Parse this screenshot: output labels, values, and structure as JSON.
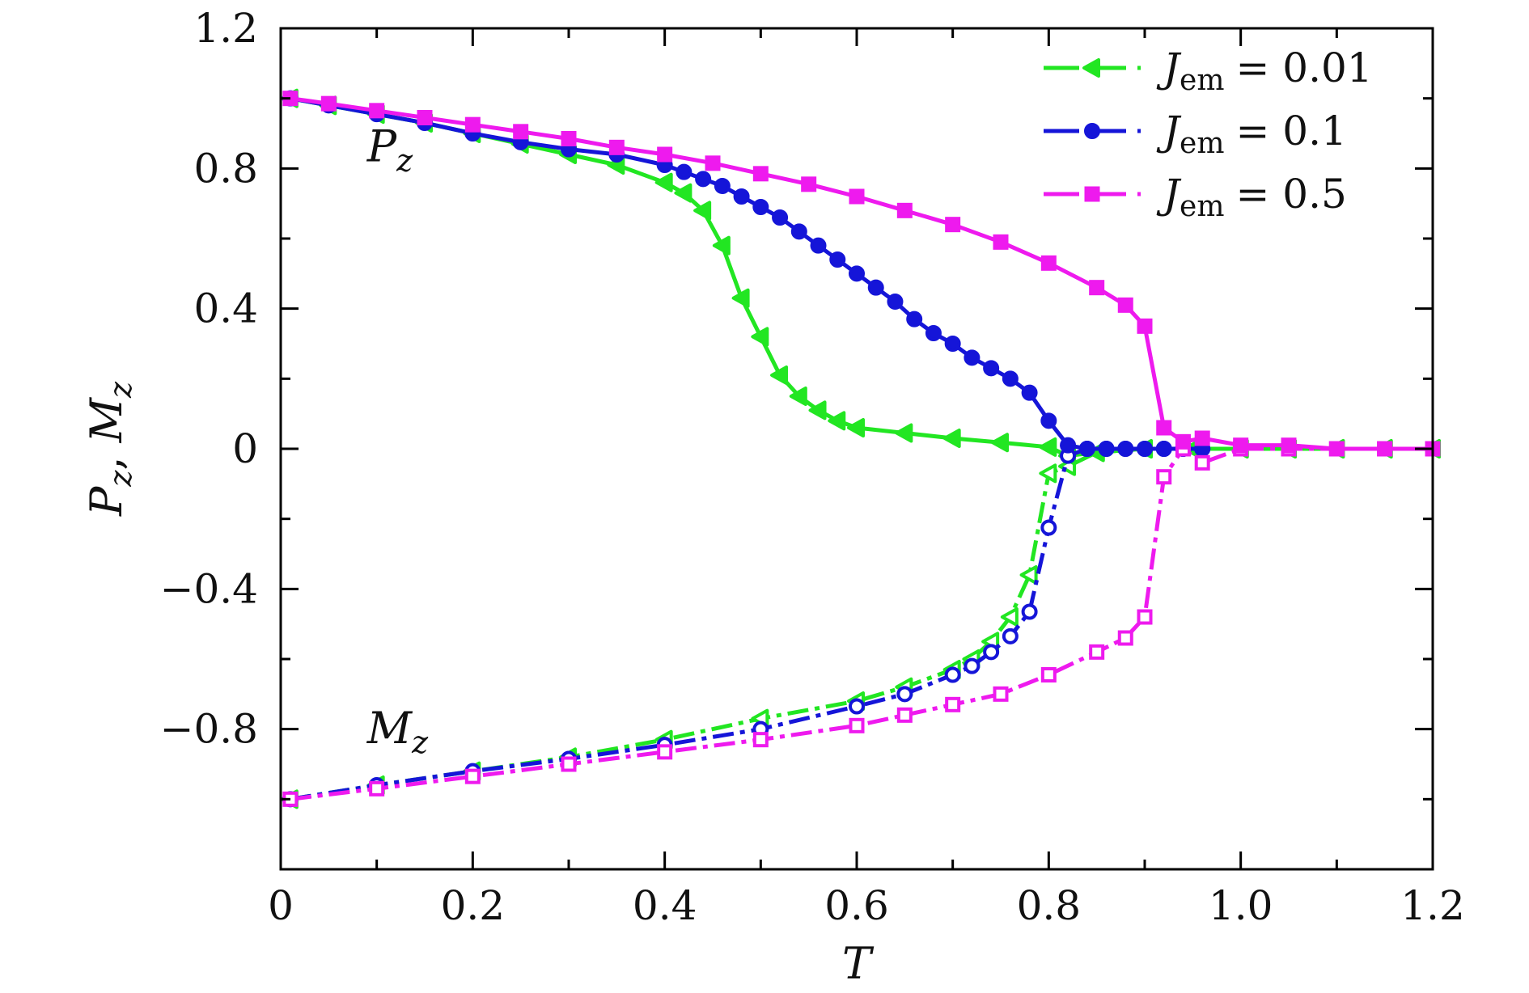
{
  "chart_data": {
    "type": "line",
    "title": "",
    "xlabel": "T",
    "ylabel": "P_z, M_z",
    "xlim": [
      0,
      1.2
    ],
    "ylim": [
      -1.2,
      1.2
    ],
    "grid": false,
    "legend_position": "top-right",
    "x_ticks": [
      "0",
      "0.2",
      "0.4",
      "0.6",
      "0.8",
      "1.0",
      "1.2"
    ],
    "y_ticks": [
      "−0.8",
      "−0.4",
      "0",
      "0.4",
      "0.8",
      "1.2"
    ],
    "annotations": [
      {
        "text": "P",
        "sub": "z",
        "x": 0.09,
        "y": 0.82
      },
      {
        "text": "M",
        "sub": "z",
        "x": 0.09,
        "y": -0.84
      }
    ],
    "legend_symbol": "J",
    "legend_subscript": "em",
    "series": [
      {
        "name": "J_em = 0.01",
        "legend_value": "= 0.01",
        "color": "#22e622",
        "marker": "triangle-left",
        "P_z": {
          "x": [
            0.01,
            0.05,
            0.1,
            0.15,
            0.2,
            0.25,
            0.3,
            0.35,
            0.4,
            0.42,
            0.44,
            0.46,
            0.48,
            0.5,
            0.52,
            0.54,
            0.56,
            0.58,
            0.6,
            0.65,
            0.7,
            0.75,
            0.8,
            0.82,
            0.85,
            0.9,
            0.95,
            1.0,
            1.05,
            1.1,
            1.15,
            1.2
          ],
          "y": [
            1.0,
            0.98,
            0.955,
            0.93,
            0.9,
            0.87,
            0.84,
            0.81,
            0.76,
            0.73,
            0.68,
            0.58,
            0.43,
            0.32,
            0.21,
            0.15,
            0.11,
            0.08,
            0.06,
            0.045,
            0.03,
            0.018,
            0.005,
            -0.02,
            -0.01,
            0.0,
            0.0,
            0.0,
            0.0,
            0.0,
            0.0,
            0.0
          ]
        },
        "M_z": {
          "x": [
            0.01,
            0.1,
            0.2,
            0.3,
            0.4,
            0.5,
            0.6,
            0.65,
            0.7,
            0.72,
            0.74,
            0.76,
            0.78,
            0.8,
            0.82,
            0.85,
            0.9,
            0.95,
            1.0,
            1.05,
            1.1,
            1.15,
            1.2
          ],
          "y": [
            -1.0,
            -0.96,
            -0.92,
            -0.88,
            -0.83,
            -0.77,
            -0.72,
            -0.68,
            -0.63,
            -0.6,
            -0.55,
            -0.48,
            -0.36,
            -0.07,
            -0.05,
            -0.01,
            0.0,
            0.0,
            0.0,
            0.0,
            0.0,
            0.0,
            0.0
          ]
        }
      },
      {
        "name": "J_em = 0.1",
        "legend_value": "= 0.1",
        "color": "#1515d8",
        "marker": "circle",
        "P_z": {
          "x": [
            0.01,
            0.05,
            0.1,
            0.15,
            0.2,
            0.25,
            0.3,
            0.35,
            0.4,
            0.42,
            0.44,
            0.46,
            0.48,
            0.5,
            0.52,
            0.54,
            0.56,
            0.58,
            0.6,
            0.62,
            0.64,
            0.66,
            0.68,
            0.7,
            0.72,
            0.74,
            0.76,
            0.78,
            0.8,
            0.82,
            0.84,
            0.86,
            0.88,
            0.9,
            0.92,
            0.94,
            0.96
          ],
          "y": [
            1.0,
            0.98,
            0.955,
            0.93,
            0.9,
            0.875,
            0.855,
            0.84,
            0.81,
            0.79,
            0.77,
            0.75,
            0.72,
            0.69,
            0.66,
            0.62,
            0.58,
            0.54,
            0.5,
            0.46,
            0.42,
            0.37,
            0.33,
            0.3,
            0.26,
            0.23,
            0.2,
            0.16,
            0.08,
            0.01,
            0.0,
            0.0,
            0.0,
            0.0,
            0.0,
            0.0,
            0.0
          ]
        },
        "M_z": {
          "x": [
            0.01,
            0.1,
            0.2,
            0.3,
            0.4,
            0.5,
            0.6,
            0.65,
            0.7,
            0.72,
            0.74,
            0.76,
            0.78,
            0.8,
            0.82,
            0.84,
            0.86,
            0.88,
            0.9,
            0.92,
            0.94,
            0.96
          ],
          "y": [
            -1.0,
            -0.96,
            -0.92,
            -0.885,
            -0.845,
            -0.8,
            -0.735,
            -0.7,
            -0.645,
            -0.62,
            -0.58,
            -0.535,
            -0.465,
            -0.225,
            -0.02,
            0.0,
            0.0,
            0.0,
            0.0,
            0.0,
            0.0,
            0.0
          ]
        }
      },
      {
        "name": "J_em = 0.5",
        "legend_value": "= 0.5",
        "color": "#ee1aee",
        "marker": "square",
        "P_z": {
          "x": [
            0.01,
            0.05,
            0.1,
            0.15,
            0.2,
            0.25,
            0.3,
            0.35,
            0.4,
            0.45,
            0.5,
            0.55,
            0.6,
            0.65,
            0.7,
            0.75,
            0.8,
            0.85,
            0.88,
            0.9,
            0.92,
            0.94,
            0.96,
            1.0,
            1.05,
            1.1,
            1.15,
            1.2
          ],
          "y": [
            1.0,
            0.985,
            0.965,
            0.945,
            0.925,
            0.905,
            0.885,
            0.86,
            0.84,
            0.815,
            0.785,
            0.755,
            0.72,
            0.68,
            0.64,
            0.59,
            0.53,
            0.46,
            0.41,
            0.35,
            0.06,
            0.02,
            0.03,
            0.01,
            0.01,
            0.0,
            0.0,
            0.0
          ]
        },
        "M_z": {
          "x": [
            0.01,
            0.1,
            0.2,
            0.3,
            0.4,
            0.5,
            0.6,
            0.65,
            0.7,
            0.75,
            0.8,
            0.85,
            0.88,
            0.9,
            0.92,
            0.94,
            0.96,
            1.0,
            1.05,
            1.1,
            1.15,
            1.2
          ],
          "y": [
            -1.0,
            -0.97,
            -0.935,
            -0.9,
            -0.865,
            -0.83,
            -0.79,
            -0.76,
            -0.73,
            -0.7,
            -0.645,
            -0.58,
            -0.54,
            -0.48,
            -0.08,
            0.0,
            -0.04,
            0.0,
            0.0,
            0.0,
            0.0,
            0.0
          ]
        }
      }
    ]
  }
}
